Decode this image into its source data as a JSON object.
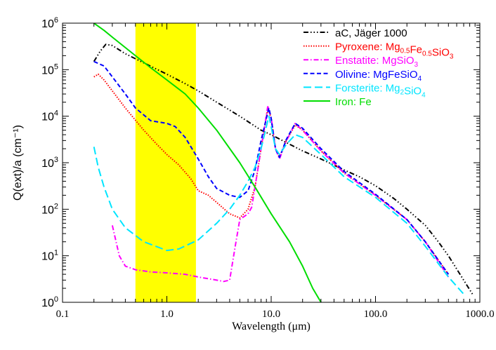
{
  "chart_data": {
    "type": "line",
    "title": "",
    "xlabel": "Wavelength (μm)",
    "ylabel": "Q(ext)/a (cm⁻¹)",
    "xscale": "log",
    "yscale": "log",
    "xlim": [
      0.1,
      1000
    ],
    "ylim": [
      1,
      1000000
    ],
    "x_tick_labels": [
      {
        "value": 0.1,
        "label": "0.1"
      },
      {
        "value": 1,
        "label": "1.0"
      },
      {
        "value": 10,
        "label": "10.0"
      },
      {
        "value": 100,
        "label": "100.0"
      },
      {
        "value": 1000,
        "label": "1000.0"
      }
    ],
    "y_tick_labels": [
      {
        "value": 1,
        "base": "10",
        "exp": "0"
      },
      {
        "value": 10,
        "base": "10",
        "exp": "1"
      },
      {
        "value": 100,
        "base": "10",
        "exp": "2"
      },
      {
        "value": 1000,
        "base": "10",
        "exp": "3"
      },
      {
        "value": 10000,
        "base": "10",
        "exp": "4"
      },
      {
        "value": 100000,
        "base": "10",
        "exp": "5"
      },
      {
        "value": 1000000,
        "base": "10",
        "exp": "6"
      }
    ],
    "highlight_band": {
      "x_start": 0.5,
      "x_end": 1.9,
      "color": "#ffff00"
    },
    "legend_position": "top-right",
    "series": [
      {
        "name": "aC, Jäger 1000",
        "legend_parts": [
          {
            "t": "aC, Jäger 1000"
          }
        ],
        "color": "#000000",
        "dash": "7,3,1.5,3,1.5,3,1.5,3",
        "points": [
          [
            0.2,
            150000
          ],
          [
            0.23,
            250000
          ],
          [
            0.26,
            350000
          ],
          [
            0.3,
            330000
          ],
          [
            0.4,
            220000
          ],
          [
            0.6,
            140000
          ],
          [
            1,
            80000
          ],
          [
            1.5,
            50000
          ],
          [
            2,
            35000
          ],
          [
            3,
            20000
          ],
          [
            5,
            10000
          ],
          [
            8,
            5000
          ],
          [
            10,
            4000
          ],
          [
            15,
            2500
          ],
          [
            20,
            1800
          ],
          [
            30,
            1200
          ],
          [
            50,
            700
          ],
          [
            70,
            500
          ],
          [
            100,
            320
          ],
          [
            150,
            170
          ],
          [
            200,
            100
          ],
          [
            300,
            45
          ],
          [
            400,
            20
          ],
          [
            500,
            10
          ],
          [
            700,
            3
          ],
          [
            850,
            1.5
          ]
        ]
      },
      {
        "name": "Pyroxene: Mg0.5Fe0.5SiO3",
        "legend_parts": [
          {
            "t": "Pyroxene: Mg"
          },
          {
            "t": "0.5",
            "sub": true
          },
          {
            "t": "Fe"
          },
          {
            "t": "0.5",
            "sub": true
          },
          {
            "t": "SiO"
          },
          {
            "t": "3",
            "sub": true
          }
        ],
        "color": "#ff0000",
        "dash": "1.5,2",
        "points": [
          [
            0.2,
            70000
          ],
          [
            0.22,
            80000
          ],
          [
            0.25,
            60000
          ],
          [
            0.3,
            35000
          ],
          [
            0.4,
            15000
          ],
          [
            0.6,
            5000
          ],
          [
            0.8,
            2500
          ],
          [
            1,
            1500
          ],
          [
            1.3,
            900
          ],
          [
            1.7,
            450
          ],
          [
            2,
            250
          ],
          [
            2.5,
            200
          ],
          [
            3,
            140
          ],
          [
            4,
            80
          ],
          [
            5,
            65
          ],
          [
            6,
            100
          ],
          [
            7,
            300
          ],
          [
            8,
            2000
          ],
          [
            9.3,
            15000
          ],
          [
            10,
            9000
          ],
          [
            11,
            2000
          ],
          [
            12,
            1300
          ],
          [
            14,
            3000
          ],
          [
            17,
            6500
          ],
          [
            20,
            5000
          ],
          [
            30,
            1800
          ],
          [
            50,
            600
          ],
          [
            100,
            200
          ],
          [
            200,
            60
          ],
          [
            300,
            20
          ],
          [
            500,
            4
          ]
        ]
      },
      {
        "name": "Enstatite: MgSiO3",
        "legend_parts": [
          {
            "t": "Enstatite: MgSiO"
          },
          {
            "t": "3",
            "sub": true
          }
        ],
        "color": "#ff00ff",
        "dash": "7,3,1.5,3",
        "points": [
          [
            0.3,
            45
          ],
          [
            0.35,
            10
          ],
          [
            0.4,
            6
          ],
          [
            0.5,
            5
          ],
          [
            0.7,
            4.5
          ],
          [
            1,
            4.3
          ],
          [
            1.5,
            4
          ],
          [
            2,
            3.5
          ],
          [
            3,
            3
          ],
          [
            3.5,
            2.8
          ],
          [
            4,
            3
          ],
          [
            4.5,
            15
          ],
          [
            5,
            60
          ],
          [
            6,
            80
          ],
          [
            6.5,
            110
          ],
          [
            7,
            300
          ],
          [
            8,
            2000
          ],
          [
            9.3,
            17000
          ],
          [
            10,
            9000
          ],
          [
            11,
            2000
          ],
          [
            12,
            1200
          ],
          [
            14,
            3000
          ],
          [
            17,
            7000
          ],
          [
            20,
            5000
          ],
          [
            30,
            1800
          ],
          [
            50,
            600
          ],
          [
            100,
            200
          ],
          [
            200,
            60
          ],
          [
            300,
            20
          ],
          [
            500,
            3.5
          ]
        ]
      },
      {
        "name": "Olivine: MgFeSiO4",
        "legend_parts": [
          {
            "t": "Olivine: MgFeSiO"
          },
          {
            "t": "4",
            "sub": true
          }
        ],
        "color": "#0000ff",
        "dash": "6,3.5",
        "points": [
          [
            0.2,
            150000
          ],
          [
            0.25,
            120000
          ],
          [
            0.3,
            70000
          ],
          [
            0.4,
            30000
          ],
          [
            0.5,
            15000
          ],
          [
            0.7,
            8000
          ],
          [
            1,
            7000
          ],
          [
            1.2,
            6000
          ],
          [
            1.5,
            3500
          ],
          [
            2,
            1200
          ],
          [
            2.5,
            500
          ],
          [
            3,
            280
          ],
          [
            4,
            200
          ],
          [
            5,
            180
          ],
          [
            6,
            250
          ],
          [
            7,
            700
          ],
          [
            8,
            3000
          ],
          [
            9.5,
            15000
          ],
          [
            10,
            9000
          ],
          [
            11,
            2000
          ],
          [
            12,
            1300
          ],
          [
            14,
            3200
          ],
          [
            17,
            7000
          ],
          [
            20,
            5500
          ],
          [
            30,
            2000
          ],
          [
            50,
            650
          ],
          [
            100,
            210
          ],
          [
            200,
            60
          ],
          [
            300,
            20
          ],
          [
            500,
            4
          ]
        ]
      },
      {
        "name": "Forsterite: Mg2SiO4",
        "legend_parts": [
          {
            "t": "Forsterite: Mg"
          },
          {
            "t": "2",
            "sub": true
          },
          {
            "t": "SiO"
          },
          {
            "t": "4",
            "sub": true
          }
        ],
        "color": "#00e5ff",
        "dash": "11,5",
        "points": [
          [
            0.2,
            2200
          ],
          [
            0.22,
            800
          ],
          [
            0.25,
            300
          ],
          [
            0.3,
            100
          ],
          [
            0.4,
            40
          ],
          [
            0.6,
            20
          ],
          [
            1,
            13
          ],
          [
            1.3,
            14
          ],
          [
            2,
            22
          ],
          [
            3,
            50
          ],
          [
            4,
            100
          ],
          [
            5,
            200
          ],
          [
            6,
            400
          ],
          [
            7,
            800
          ],
          [
            8,
            2000
          ],
          [
            9.5,
            10000
          ],
          [
            10,
            6000
          ],
          [
            11,
            2000
          ],
          [
            12,
            1500
          ],
          [
            14,
            2500
          ],
          [
            17,
            4000
          ],
          [
            20,
            3500
          ],
          [
            30,
            1500
          ],
          [
            50,
            500
          ],
          [
            100,
            180
          ],
          [
            200,
            50
          ],
          [
            300,
            16
          ],
          [
            500,
            3.5
          ],
          [
            700,
            1.5
          ]
        ]
      },
      {
        "name": "Iron: Fe",
        "legend_parts": [
          {
            "t": "Iron: Fe"
          }
        ],
        "color": "#00dd00",
        "dash": "",
        "points": [
          [
            0.2,
            1000000
          ],
          [
            0.25,
            700000
          ],
          [
            0.3,
            500000
          ],
          [
            0.5,
            200000
          ],
          [
            0.7,
            110000
          ],
          [
            1,
            60000
          ],
          [
            1.5,
            30000
          ],
          [
            2,
            15000
          ],
          [
            3,
            5000
          ],
          [
            5,
            1000
          ],
          [
            7,
            300
          ],
          [
            10,
            80
          ],
          [
            15,
            20
          ],
          [
            20,
            6
          ],
          [
            25,
            2
          ],
          [
            30,
            1
          ]
        ]
      }
    ]
  }
}
